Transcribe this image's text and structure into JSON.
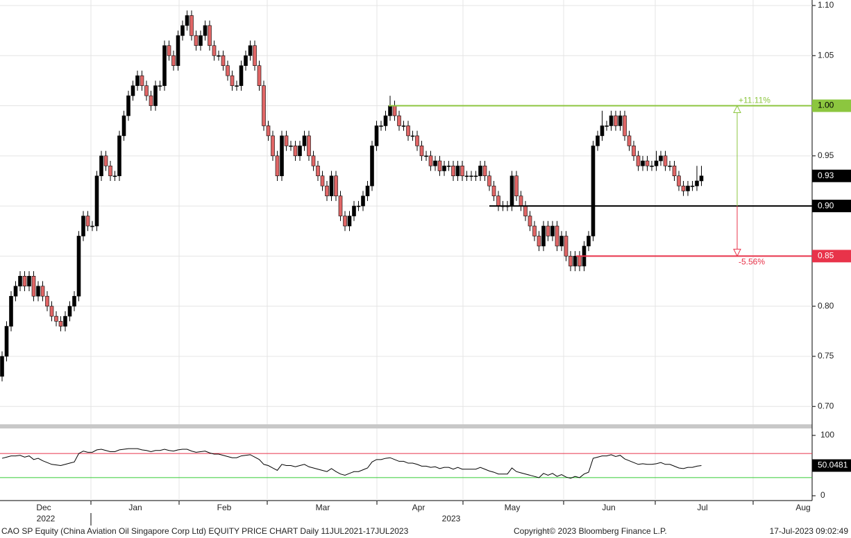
{
  "chart_data": {
    "type": "candlestick",
    "ohlc": [
      [
        0.73,
        0.755,
        0.725,
        0.75
      ],
      [
        0.75,
        0.785,
        0.745,
        0.78
      ],
      [
        0.78,
        0.815,
        0.775,
        0.81
      ],
      [
        0.81,
        0.825,
        0.805,
        0.82
      ],
      [
        0.82,
        0.835,
        0.815,
        0.83
      ],
      [
        0.83,
        0.835,
        0.815,
        0.82
      ],
      [
        0.82,
        0.835,
        0.815,
        0.83
      ],
      [
        0.83,
        0.835,
        0.805,
        0.81
      ],
      [
        0.81,
        0.825,
        0.805,
        0.82
      ],
      [
        0.82,
        0.825,
        0.805,
        0.81
      ],
      [
        0.81,
        0.815,
        0.795,
        0.8
      ],
      [
        0.8,
        0.805,
        0.785,
        0.79
      ],
      [
        0.79,
        0.795,
        0.78,
        0.785
      ],
      [
        0.785,
        0.79,
        0.775,
        0.78
      ],
      [
        0.78,
        0.795,
        0.775,
        0.79
      ],
      [
        0.79,
        0.805,
        0.785,
        0.8
      ],
      [
        0.8,
        0.815,
        0.795,
        0.81
      ],
      [
        0.81,
        0.875,
        0.805,
        0.87
      ],
      [
        0.87,
        0.895,
        0.865,
        0.89
      ],
      [
        0.89,
        0.895,
        0.875,
        0.88
      ],
      [
        0.88,
        0.885,
        0.875,
        0.88
      ],
      [
        0.88,
        0.935,
        0.875,
        0.93
      ],
      [
        0.93,
        0.955,
        0.925,
        0.95
      ],
      [
        0.95,
        0.955,
        0.935,
        0.94
      ],
      [
        0.94,
        0.945,
        0.925,
        0.93
      ],
      [
        0.93,
        0.935,
        0.925,
        0.93
      ],
      [
        0.93,
        0.975,
        0.925,
        0.97
      ],
      [
        0.97,
        0.995,
        0.965,
        0.99
      ],
      [
        0.99,
        1.015,
        0.985,
        1.01
      ],
      [
        1.01,
        1.025,
        1.005,
        1.02
      ],
      [
        1.02,
        1.035,
        1.015,
        1.03
      ],
      [
        1.03,
        1.035,
        1.015,
        1.02
      ],
      [
        1.02,
        1.025,
        1.005,
        1.01
      ],
      [
        1.01,
        1.015,
        0.995,
        1.0
      ],
      [
        1.0,
        1.025,
        0.995,
        1.02
      ],
      [
        1.02,
        1.025,
        1.015,
        1.02
      ],
      [
        1.02,
        1.065,
        1.015,
        1.06
      ],
      [
        1.06,
        1.065,
        1.045,
        1.05
      ],
      [
        1.05,
        1.055,
        1.035,
        1.04
      ],
      [
        1.04,
        1.075,
        1.035,
        1.07
      ],
      [
        1.07,
        1.085,
        1.065,
        1.08
      ],
      [
        1.08,
        1.095,
        1.075,
        1.09
      ],
      [
        1.09,
        1.095,
        1.065,
        1.07
      ],
      [
        1.07,
        1.075,
        1.055,
        1.06
      ],
      [
        1.06,
        1.075,
        1.055,
        1.07
      ],
      [
        1.07,
        1.085,
        1.065,
        1.08
      ],
      [
        1.08,
        1.085,
        1.055,
        1.06
      ],
      [
        1.06,
        1.065,
        1.045,
        1.05
      ],
      [
        1.05,
        1.055,
        1.045,
        1.05
      ],
      [
        1.05,
        1.055,
        1.035,
        1.04
      ],
      [
        1.04,
        1.045,
        1.025,
        1.03
      ],
      [
        1.03,
        1.035,
        1.015,
        1.02
      ],
      [
        1.02,
        1.025,
        1.015,
        1.02
      ],
      [
        1.02,
        1.045,
        1.015,
        1.04
      ],
      [
        1.04,
        1.055,
        1.035,
        1.05
      ],
      [
        1.05,
        1.065,
        1.045,
        1.06
      ],
      [
        1.06,
        1.065,
        1.035,
        1.04
      ],
      [
        1.04,
        1.045,
        1.015,
        1.02
      ],
      [
        1.02,
        1.025,
        0.975,
        0.98
      ],
      [
        0.98,
        0.985,
        0.965,
        0.97
      ],
      [
        0.97,
        0.975,
        0.945,
        0.95
      ],
      [
        0.95,
        0.955,
        0.925,
        0.93
      ],
      [
        0.93,
        0.975,
        0.925,
        0.97
      ],
      [
        0.97,
        0.975,
        0.955,
        0.96
      ],
      [
        0.96,
        0.965,
        0.955,
        0.96
      ],
      [
        0.96,
        0.965,
        0.945,
        0.95
      ],
      [
        0.95,
        0.965,
        0.945,
        0.96
      ],
      [
        0.96,
        0.975,
        0.955,
        0.97
      ],
      [
        0.97,
        0.975,
        0.945,
        0.95
      ],
      [
        0.95,
        0.955,
        0.935,
        0.94
      ],
      [
        0.94,
        0.945,
        0.925,
        0.93
      ],
      [
        0.93,
        0.935,
        0.915,
        0.92
      ],
      [
        0.92,
        0.925,
        0.905,
        0.91
      ],
      [
        0.91,
        0.935,
        0.905,
        0.93
      ],
      [
        0.93,
        0.935,
        0.905,
        0.91
      ],
      [
        0.91,
        0.915,
        0.885,
        0.89
      ],
      [
        0.89,
        0.895,
        0.875,
        0.88
      ],
      [
        0.88,
        0.895,
        0.875,
        0.89
      ],
      [
        0.89,
        0.905,
        0.885,
        0.9
      ],
      [
        0.9,
        0.905,
        0.895,
        0.9
      ],
      [
        0.9,
        0.915,
        0.895,
        0.91
      ],
      [
        0.91,
        0.925,
        0.905,
        0.92
      ],
      [
        0.92,
        0.965,
        0.915,
        0.96
      ],
      [
        0.96,
        0.985,
        0.955,
        0.98
      ],
      [
        0.98,
        0.985,
        0.975,
        0.98
      ],
      [
        0.98,
        0.995,
        0.975,
        0.99
      ],
      [
        0.99,
        1.01,
        0.985,
        1.0
      ],
      [
        1.0,
        1.005,
        0.985,
        0.99
      ],
      [
        0.99,
        0.995,
        0.975,
        0.98
      ],
      [
        0.98,
        0.985,
        0.975,
        0.98
      ],
      [
        0.98,
        0.985,
        0.965,
        0.97
      ],
      [
        0.97,
        0.975,
        0.965,
        0.97
      ],
      [
        0.97,
        0.975,
        0.955,
        0.96
      ],
      [
        0.96,
        0.965,
        0.945,
        0.95
      ],
      [
        0.95,
        0.955,
        0.945,
        0.95
      ],
      [
        0.95,
        0.955,
        0.935,
        0.94
      ],
      [
        0.94,
        0.95,
        0.935,
        0.945
      ],
      [
        0.945,
        0.95,
        0.93,
        0.935
      ],
      [
        0.935,
        0.945,
        0.93,
        0.94
      ],
      [
        0.94,
        0.945,
        0.935,
        0.94
      ],
      [
        0.94,
        0.945,
        0.925,
        0.93
      ],
      [
        0.93,
        0.945,
        0.925,
        0.94
      ],
      [
        0.94,
        0.945,
        0.925,
        0.93
      ],
      [
        0.93,
        0.935,
        0.925,
        0.93
      ],
      [
        0.93,
        0.935,
        0.925,
        0.93
      ],
      [
        0.93,
        0.935,
        0.925,
        0.93
      ],
      [
        0.93,
        0.945,
        0.925,
        0.94
      ],
      [
        0.94,
        0.945,
        0.925,
        0.93
      ],
      [
        0.93,
        0.935,
        0.915,
        0.92
      ],
      [
        0.92,
        0.925,
        0.905,
        0.91
      ],
      [
        0.91,
        0.915,
        0.895,
        0.9
      ],
      [
        0.9,
        0.905,
        0.895,
        0.9
      ],
      [
        0.9,
        0.905,
        0.895,
        0.9
      ],
      [
        0.9,
        0.935,
        0.895,
        0.93
      ],
      [
        0.93,
        0.935,
        0.905,
        0.91
      ],
      [
        0.91,
        0.915,
        0.895,
        0.9
      ],
      [
        0.9,
        0.905,
        0.885,
        0.89
      ],
      [
        0.89,
        0.895,
        0.875,
        0.88
      ],
      [
        0.88,
        0.885,
        0.865,
        0.87
      ],
      [
        0.87,
        0.875,
        0.855,
        0.86
      ],
      [
        0.86,
        0.885,
        0.855,
        0.88
      ],
      [
        0.88,
        0.885,
        0.865,
        0.87
      ],
      [
        0.87,
        0.885,
        0.865,
        0.88
      ],
      [
        0.88,
        0.885,
        0.855,
        0.86
      ],
      [
        0.86,
        0.875,
        0.855,
        0.87
      ],
      [
        0.87,
        0.875,
        0.845,
        0.85
      ],
      [
        0.85,
        0.855,
        0.835,
        0.84
      ],
      [
        0.84,
        0.855,
        0.835,
        0.85
      ],
      [
        0.85,
        0.855,
        0.835,
        0.84
      ],
      [
        0.84,
        0.865,
        0.835,
        0.86
      ],
      [
        0.86,
        0.875,
        0.855,
        0.87
      ],
      [
        0.87,
        0.965,
        0.865,
        0.96
      ],
      [
        0.96,
        0.975,
        0.955,
        0.97
      ],
      [
        0.97,
        0.995,
        0.965,
        0.98
      ],
      [
        0.98,
        0.985,
        0.975,
        0.98
      ],
      [
        0.98,
        0.995,
        0.975,
        0.99
      ],
      [
        0.99,
        0.995,
        0.975,
        0.98
      ],
      [
        0.98,
        0.995,
        0.975,
        0.99
      ],
      [
        0.99,
        0.995,
        0.965,
        0.97
      ],
      [
        0.97,
        0.975,
        0.955,
        0.96
      ],
      [
        0.96,
        0.965,
        0.945,
        0.95
      ],
      [
        0.95,
        0.955,
        0.935,
        0.94
      ],
      [
        0.94,
        0.95,
        0.935,
        0.945
      ],
      [
        0.945,
        0.95,
        0.935,
        0.94
      ],
      [
        0.94,
        0.945,
        0.935,
        0.94
      ],
      [
        0.94,
        0.955,
        0.935,
        0.945
      ],
      [
        0.945,
        0.955,
        0.94,
        0.95
      ],
      [
        0.95,
        0.955,
        0.935,
        0.94
      ],
      [
        0.94,
        0.945,
        0.935,
        0.94
      ],
      [
        0.94,
        0.945,
        0.925,
        0.93
      ],
      [
        0.93,
        0.935,
        0.915,
        0.92
      ],
      [
        0.92,
        0.925,
        0.91,
        0.915
      ],
      [
        0.915,
        0.925,
        0.91,
        0.92
      ],
      [
        0.92,
        0.925,
        0.915,
        0.92
      ],
      [
        0.92,
        0.94,
        0.915,
        0.925
      ],
      [
        0.925,
        0.94,
        0.92,
        0.93
      ]
    ],
    "up_color": "#000000",
    "down_color": "#e06666",
    "ylim": [
      0.6815,
      1.1055
    ],
    "yticks": [
      {
        "value": 0.7,
        "label": "0.70"
      },
      0.75,
      {
        "value": 0.8,
        "label": "0.80"
      },
      0.85,
      {
        "value": 0.9,
        "label": "0.90"
      },
      0.95,
      {
        "value": 1.0,
        "label": "1.00"
      },
      1.05,
      {
        "value": 1.1,
        "label": "1.10"
      }
    ],
    "grid": true,
    "levels": [
      {
        "value": 1.0,
        "label": "1.00",
        "color": "#8cc63f"
      },
      {
        "value": 0.9,
        "label": "0.90",
        "color": "#000000"
      },
      {
        "value": 0.85,
        "color": "#e8334a"
      }
    ],
    "annotations": [
      {
        "text": "+11.11%",
        "color": "#8cc63f"
      },
      {
        "text": "-5.56%",
        "color": "#e8334a"
      }
    ],
    "x_axis": {
      "months": [
        "Dec",
        "Jan",
        "Feb",
        "Mar",
        "Apr",
        "May",
        "Jun",
        "Jul",
        "Aug"
      ],
      "years": [
        "2022",
        "2023"
      ]
    },
    "rsi": {
      "color": "#000000",
      "ylim": [
        -8,
        111.5
      ],
      "yticks": [
        0,
        50,
        100
      ],
      "levels": [
        {
          "value": 70,
          "color": "#e8334a"
        },
        {
          "value": 30,
          "color": "#33cc33"
        }
      ],
      "values": [
        62,
        64,
        66,
        66,
        67,
        64,
        66,
        60,
        62,
        58,
        55,
        52,
        51,
        50,
        52,
        54,
        56,
        70,
        74,
        72,
        72,
        76,
        77,
        75,
        73,
        73,
        76,
        77,
        78,
        78,
        78,
        76,
        75,
        73,
        75,
        75,
        77,
        75,
        74,
        76,
        77,
        77,
        74,
        72,
        73,
        74,
        71,
        69,
        69,
        67,
        65,
        63,
        63,
        66,
        67,
        68,
        64,
        60,
        52,
        50,
        46,
        42,
        52,
        50,
        50,
        48,
        50,
        52,
        48,
        46,
        44,
        42,
        40,
        45,
        40,
        36,
        34,
        37,
        40,
        40,
        43,
        46,
        56,
        60,
        60,
        62,
        63,
        60,
        57,
        57,
        54,
        54,
        52,
        49,
        49,
        47,
        48,
        45,
        47,
        47,
        44,
        47,
        44,
        44,
        44,
        44,
        47,
        44,
        41,
        39,
        36,
        36,
        36,
        46,
        40,
        38,
        36,
        34,
        32,
        30,
        37,
        34,
        37,
        32,
        35,
        31,
        29,
        32,
        30,
        36,
        39,
        62,
        64,
        66,
        66,
        68,
        65,
        67,
        61,
        58,
        55,
        52,
        53,
        52,
        52,
        53,
        55,
        52,
        52,
        49,
        46,
        45,
        47,
        47,
        49,
        50.0481
      ]
    },
    "footer": {
      "left": "CAO SP Equity (China Aviation Oil Singapore Corp Ltd) EQUITY PRICE CHART  Daily 11JUL2021-17JUL2023",
      "center": "Copyright© 2023 Bloomberg Finance L.P.",
      "right": "17-Jul-2023 09:02:49"
    }
  }
}
